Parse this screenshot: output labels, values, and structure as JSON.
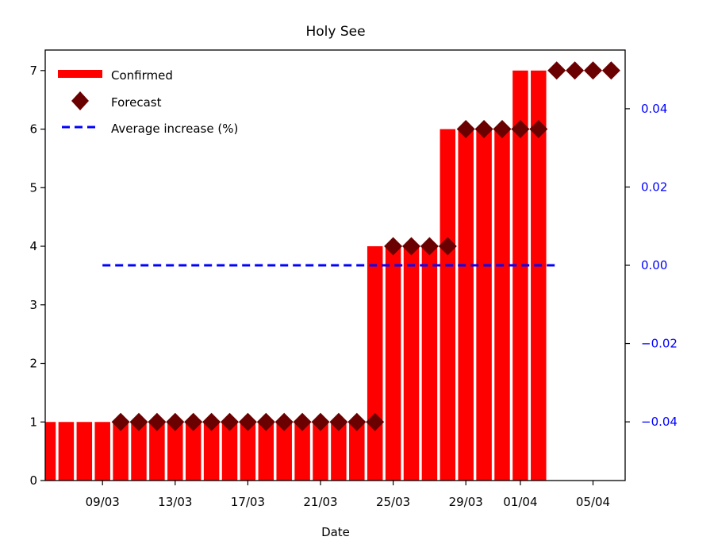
{
  "chart_data": {
    "type": "bar",
    "title": "Holy See",
    "xlabel": "Date",
    "ylabel": "",
    "ylim": [
      0,
      7.35
    ],
    "y2lim": [
      -0.055,
      0.055
    ],
    "x_tick_labels": [
      "09/03",
      "13/03",
      "17/03",
      "21/03",
      "25/03",
      "29/03",
      "01/04",
      "05/04"
    ],
    "y_tick_labels": [
      "0",
      "1",
      "2",
      "3",
      "4",
      "5",
      "6",
      "7"
    ],
    "y2_tick_labels": [
      "−0.04",
      "−0.02",
      "0.00",
      "0.02",
      "0.04"
    ],
    "legend_position": "top-left",
    "colors": {
      "confirmed": "#ff0000",
      "forecast": "#6b0000",
      "average": "#0000ff",
      "right_axis": "#0000ff"
    },
    "series": [
      {
        "name": "Confirmed",
        "type": "bar",
        "x": [
          "06/03",
          "07/03",
          "08/03",
          "09/03",
          "10/03",
          "11/03",
          "12/03",
          "13/03",
          "14/03",
          "15/03",
          "16/03",
          "17/03",
          "18/03",
          "19/03",
          "20/03",
          "21/03",
          "22/03",
          "23/03",
          "24/03",
          "25/03",
          "26/03",
          "27/03",
          "28/03",
          "29/03",
          "30/03",
          "31/03",
          "01/04",
          "02/04"
        ],
        "values": [
          1,
          1,
          1,
          1,
          1,
          1,
          1,
          1,
          1,
          1,
          1,
          1,
          1,
          1,
          1,
          1,
          1,
          1,
          4,
          4,
          4,
          4,
          6,
          6,
          6,
          6,
          7,
          7
        ]
      },
      {
        "name": "Forecast",
        "type": "scatter",
        "x": [
          "10/03",
          "11/03",
          "12/03",
          "13/03",
          "14/03",
          "15/03",
          "16/03",
          "17/03",
          "18/03",
          "19/03",
          "20/03",
          "21/03",
          "22/03",
          "23/03",
          "24/03",
          "25/03",
          "26/03",
          "27/03",
          "28/03",
          "29/03",
          "30/03",
          "31/03",
          "01/04",
          "02/04",
          "03/04",
          "04/04",
          "05/04",
          "06/04"
        ],
        "values": [
          1,
          1,
          1,
          1,
          1,
          1,
          1,
          1,
          1,
          1,
          1,
          1,
          1,
          1,
          1,
          4,
          4,
          4,
          4,
          6,
          6,
          6,
          6,
          6,
          7,
          7,
          7,
          7
        ]
      },
      {
        "name": "Average increase (%)",
        "type": "line",
        "axis": "right",
        "x": [
          "09/03",
          "03/04"
        ],
        "values": [
          0.0,
          0.0
        ]
      }
    ]
  }
}
